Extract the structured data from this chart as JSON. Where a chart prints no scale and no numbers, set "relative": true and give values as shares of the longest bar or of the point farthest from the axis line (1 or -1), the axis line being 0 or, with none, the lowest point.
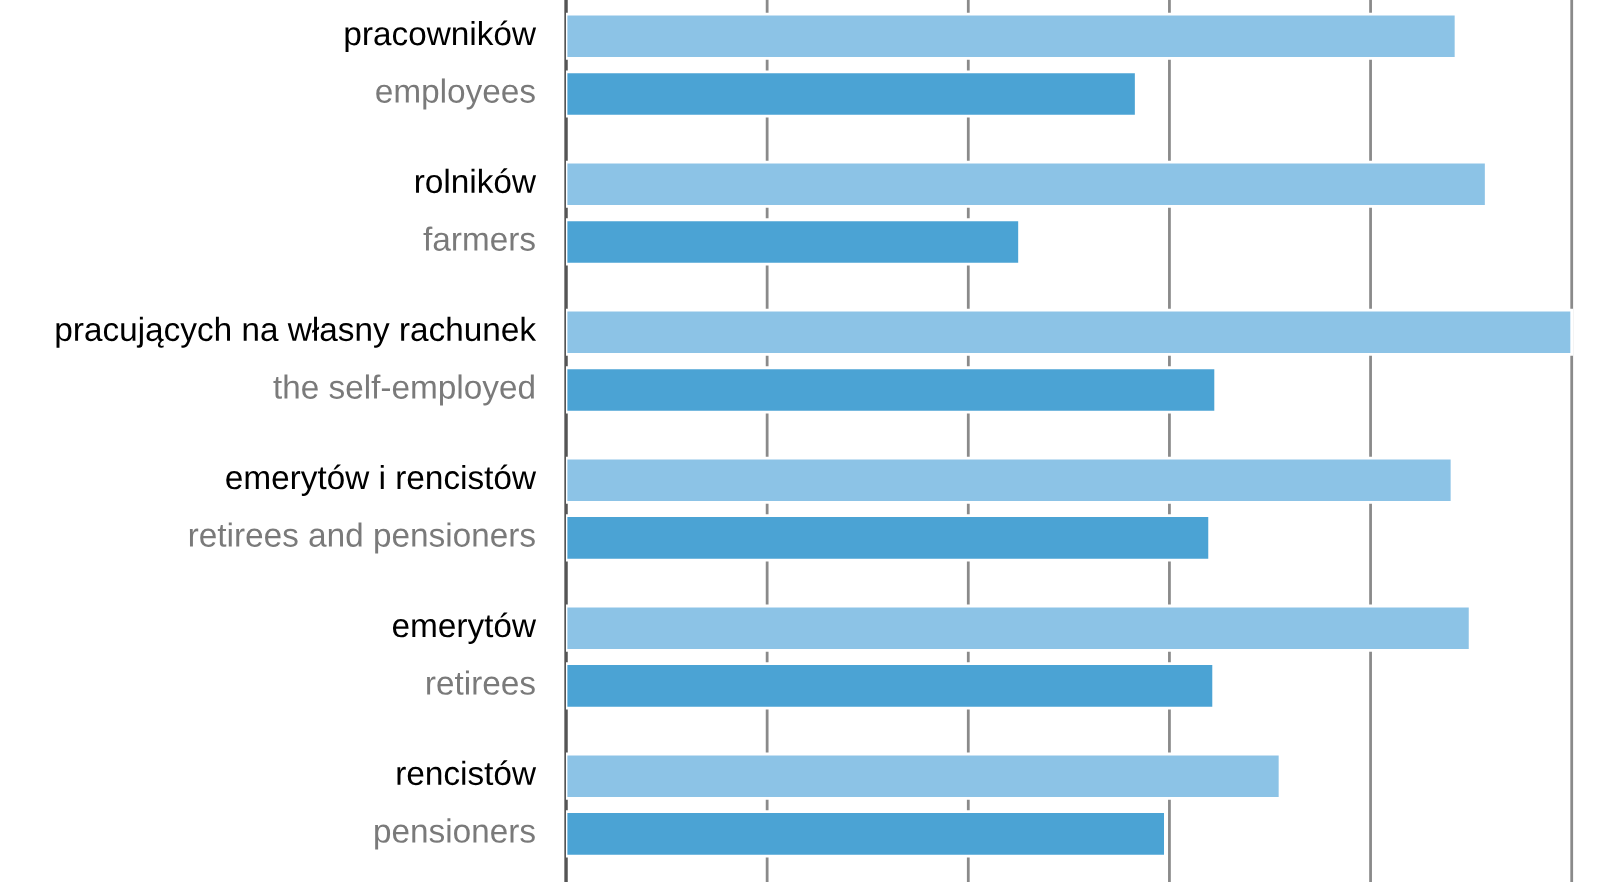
{
  "chart_data": {
    "type": "bar",
    "orientation": "horizontal",
    "relative": true,
    "grid": "x",
    "legend": false,
    "categories": [
      "pracowników\nemployees",
      "rolników\nfarmers",
      "pracujących na własny rachunek\nthe self-employed",
      "emerytów i rencistów\nretirees and pensioners",
      "emerytów\nretirees",
      "rencistów\npensioners"
    ],
    "series": [
      {
        "color": "#8cc3e6",
        "values": [
          0.885,
          0.915,
          1,
          0.881,
          0.899,
          0.71
        ]
      },
      {
        "color": "#4ba3d4",
        "values": [
          0.567,
          0.451,
          0.646,
          0.64,
          0.644,
          0.596
        ]
      }
    ]
  }
}
